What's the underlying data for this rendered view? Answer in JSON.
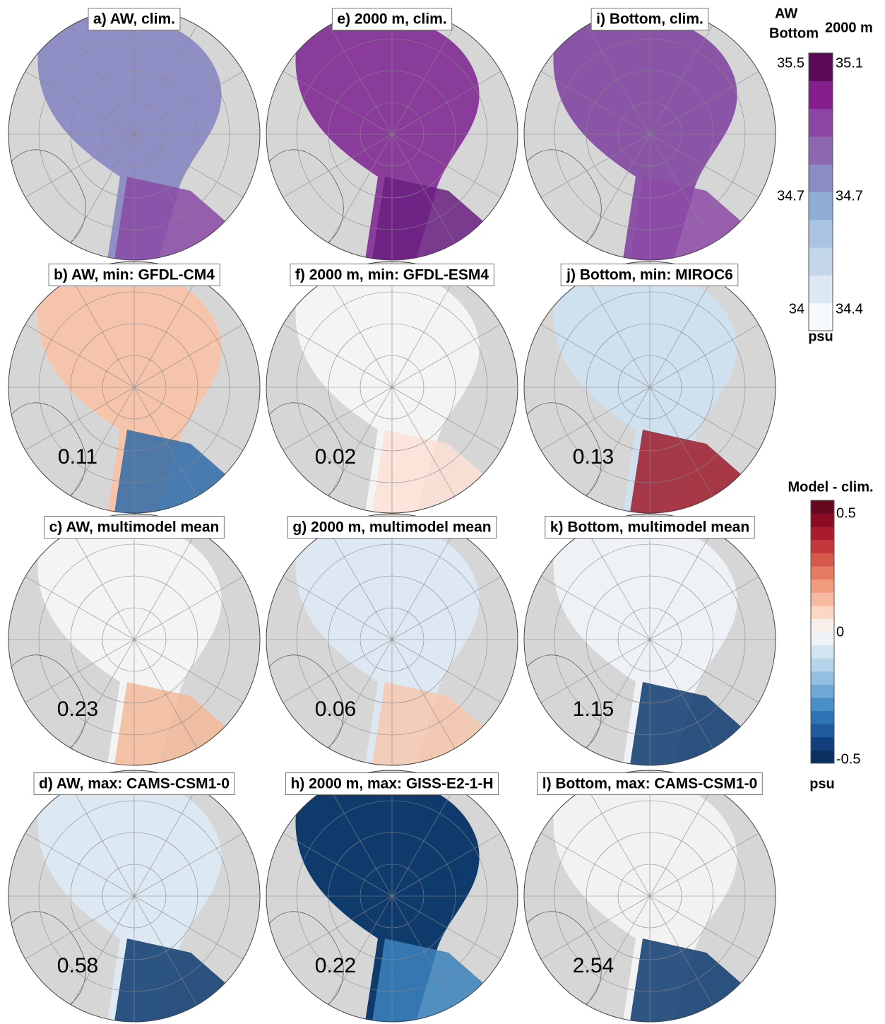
{
  "panels": [
    {
      "title": "a) AW, clim."
    },
    {
      "title": "b) AW, min: GFDL-CM4",
      "value": 0.11
    },
    {
      "title": "c) AW, multimodel mean",
      "value": 0.23
    },
    {
      "title": "d) AW, max: CAMS-CSM1-0",
      "value": 0.58
    },
    {
      "title": "e) 2000 m, clim."
    },
    {
      "title": "f) 2000 m, min: GFDL-ESM4",
      "value": 0.02
    },
    {
      "title": "g) 2000 m, multimodel mean",
      "value": 0.06
    },
    {
      "title": "h) 2000 m, max: GISS-E2-1-H",
      "value": 0.22
    },
    {
      "title": "i) Bottom, clim."
    },
    {
      "title": "j) Bottom, min: MIROC6",
      "value": 0.13
    },
    {
      "title": "k) Bottom, multimodel mean",
      "value": 1.15
    },
    {
      "title": "l) Bottom, max: CAMS-CSM1-0",
      "value": 2.54
    }
  ],
  "salinity_colorbar": {
    "labels_left": [
      "AW",
      "Bottom"
    ],
    "label_right": "2000 m",
    "ticks_left": [
      35.5,
      34.7,
      34
    ],
    "ticks_right": [
      35.1,
      34.7,
      34.4
    ],
    "unit": "psu"
  },
  "difference_colorbar": {
    "title": "Model - clim.",
    "ticks": [
      0.5,
      0,
      -0.5
    ],
    "unit": "psu"
  }
}
